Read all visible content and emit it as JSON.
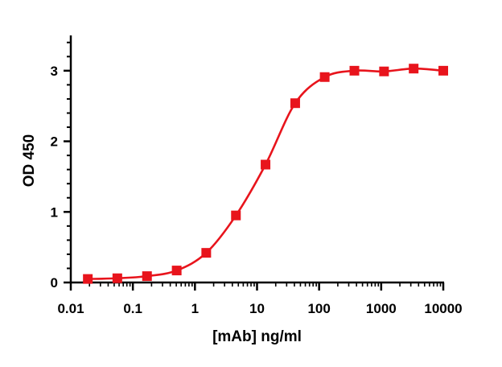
{
  "chart_data": {
    "type": "line",
    "xlabel": "[mAb] ng/ml",
    "ylabel": "OD 450",
    "x_scale": "log",
    "xlim": [
      0.01,
      10000
    ],
    "ylim": [
      0,
      3.5
    ],
    "x_ticks": [
      {
        "value": 0.01,
        "label": "0.01"
      },
      {
        "value": 0.1,
        "label": "0.1"
      },
      {
        "value": 1,
        "label": "1"
      },
      {
        "value": 10,
        "label": "10"
      },
      {
        "value": 100,
        "label": "100"
      },
      {
        "value": 1000,
        "label": "1000"
      },
      {
        "value": 10000,
        "label": "10000"
      }
    ],
    "y_ticks": [
      {
        "value": 0,
        "label": "0"
      },
      {
        "value": 1,
        "label": "1"
      },
      {
        "value": 2,
        "label": "2"
      },
      {
        "value": 3,
        "label": "3"
      }
    ],
    "grid": false,
    "series": [
      {
        "color": "#e8141c",
        "marker": "square",
        "x": [
          0.0188,
          0.0562,
          0.169,
          0.508,
          1.52,
          4.57,
          13.7,
          41.2,
          123,
          370,
          1111,
          3333,
          10000
        ],
        "y": [
          0.05,
          0.06,
          0.09,
          0.17,
          0.42,
          0.95,
          1.67,
          2.54,
          2.91,
          3.0,
          2.99,
          3.03,
          3.0
        ]
      }
    ]
  }
}
